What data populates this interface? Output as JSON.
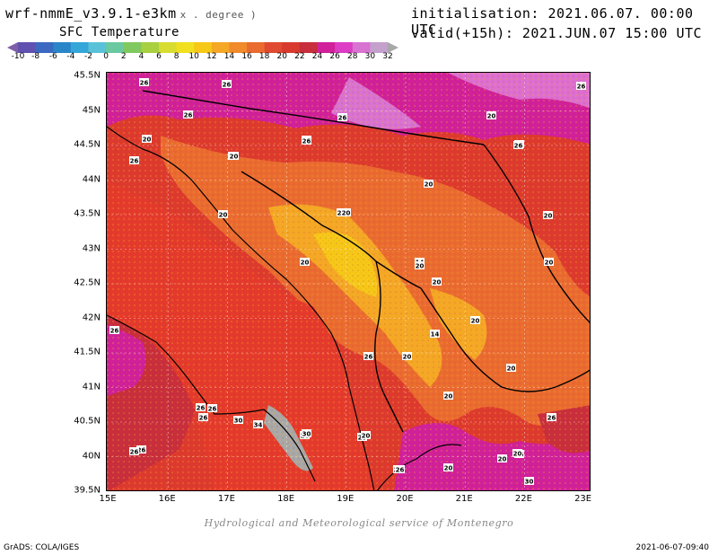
{
  "header": {
    "model": "wrf-nmmE_v3.9.1-e3km",
    "unit": "x . degree )",
    "variable": "SFC Temperature",
    "initialisation": "initialisation: 2021.06.07. 00:00 UTC",
    "valid": "valid(+15h): 2021.JUN.07 15:00 UTC"
  },
  "colorbar": {
    "labels": [
      "-10",
      "-8",
      "-6",
      "-4",
      "-2",
      "0",
      "2",
      "4",
      "6",
      "8",
      "10",
      "12",
      "14",
      "16",
      "18",
      "20",
      "22",
      "24",
      "26",
      "28",
      "30",
      "32"
    ],
    "colors": [
      "#7f5ea8",
      "#6050b0",
      "#3b68c0",
      "#2a86c8",
      "#35a6d8",
      "#5ac2d8",
      "#6ac9a0",
      "#80c860",
      "#a8d040",
      "#d8dc30",
      "#f0e020",
      "#f6c818",
      "#f4a825",
      "#f08a2a",
      "#ea6b30",
      "#e04a30",
      "#d83a2e",
      "#c82e3c",
      "#d0209a",
      "#dd3cc4",
      "#d873d2",
      "#c4a0cc",
      "#a8a8a8"
    ]
  },
  "map": {
    "lat_labels": [
      "45.5N",
      "45N",
      "44.5N",
      "44N",
      "43.5N",
      "43N",
      "42.5N",
      "42N",
      "41.5N",
      "41N",
      "40.5N",
      "40N",
      "39.5N"
    ],
    "lon_labels": [
      "15E",
      "16E",
      "17E",
      "18E",
      "19E",
      "20E",
      "21E",
      "22E",
      "23E"
    ],
    "contour_labels": [
      "26",
      "26",
      "26",
      "26",
      "20",
      "20",
      "26",
      "20",
      "20",
      "26",
      "26",
      "20",
      "20",
      "26",
      "20",
      "20",
      "20",
      "14",
      "20",
      "20",
      "20",
      "20",
      "20",
      "20",
      "20",
      "14",
      "20",
      "26",
      "26",
      "20",
      "20",
      "26",
      "26",
      "26",
      "20",
      "26",
      "30",
      "34",
      "26",
      "30",
      "20",
      "20",
      "26",
      "20",
      "26",
      "30",
      "26",
      "20",
      "20",
      "26",
      "20"
    ]
  },
  "credit": "Hydrological and Meteorological service of Montenegro",
  "footer": {
    "left": "GrADS: COLA/IGES",
    "right": "2021-06-07-09:40"
  }
}
